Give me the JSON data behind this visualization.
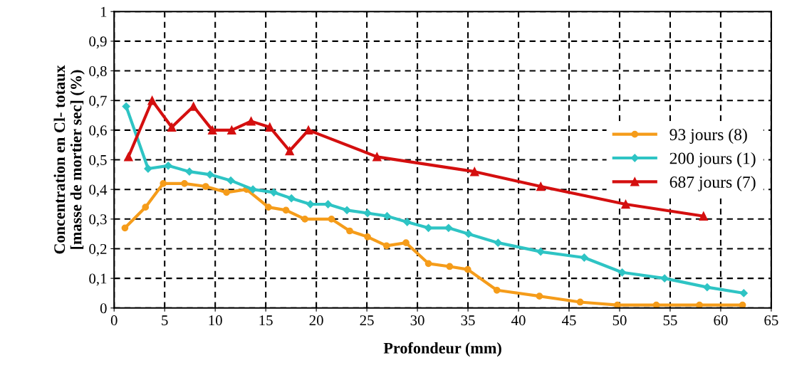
{
  "chart_data": {
    "type": "line",
    "xlabel": "Profondeur (mm)",
    "ylabel": "Concentration en Cl- totaux\n[masse de mortier sec] (%)",
    "xlim": [
      0,
      65
    ],
    "xticks": [
      0,
      5,
      10,
      15,
      20,
      25,
      30,
      35,
      40,
      45,
      50,
      55,
      60,
      65
    ],
    "ylim": [
      0,
      1
    ],
    "yticks": [
      0,
      {
        "value": 0.1,
        "label": "0,1"
      },
      {
        "value": 0.2,
        "label": "0,2"
      },
      {
        "value": 0.3,
        "label": "0,3"
      },
      {
        "value": 0.4,
        "label": "0,4"
      },
      {
        "value": 0.5,
        "label": "0,5"
      },
      {
        "value": 0.6,
        "label": "0,6"
      },
      {
        "value": 0.7,
        "label": "0,7"
      },
      {
        "value": 0.8,
        "label": "0,8"
      },
      {
        "value": 0.9,
        "label": "0,9"
      },
      1
    ],
    "grid": true,
    "legend": "center right",
    "series": [
      {
        "name": "93 jours (8)",
        "color": "#f59c1a",
        "marker": "circle",
        "x": [
          1.07,
          3.1,
          4.86,
          6.96,
          9.06,
          11.12,
          13.1,
          15.26,
          17.0,
          18.87,
          21.5,
          23.3,
          25.07,
          26.95,
          28.87,
          31.09,
          33.19,
          34.98,
          37.86,
          42.07,
          46.1,
          49.78,
          53.63,
          57.9,
          62.16
        ],
        "values": [
          0.27,
          0.34,
          0.42,
          0.42,
          0.41,
          0.39,
          0.4,
          0.34,
          0.33,
          0.3,
          0.3,
          0.26,
          0.24,
          0.21,
          0.22,
          0.15,
          0.14,
          0.13,
          0.06,
          0.04,
          0.02,
          0.01,
          0.01,
          0.01,
          0.01
        ]
      },
      {
        "name": "200 jours (1)",
        "color": "#2ec4c4",
        "marker": "diamond",
        "x": [
          1.19,
          3.36,
          5.35,
          7.45,
          9.48,
          11.54,
          13.73,
          15.79,
          17.54,
          19.41,
          21.16,
          23.03,
          25.07,
          27.0,
          28.99,
          31.09,
          33.08,
          35.06,
          37.98,
          42.19,
          46.5,
          50.25,
          54.45,
          58.66,
          62.28
        ],
        "values": [
          0.68,
          0.47,
          0.48,
          0.46,
          0.45,
          0.43,
          0.4,
          0.39,
          0.37,
          0.35,
          0.35,
          0.33,
          0.32,
          0.31,
          0.29,
          0.27,
          0.27,
          0.25,
          0.22,
          0.19,
          0.17,
          0.12,
          0.1,
          0.07,
          0.05
        ]
      },
      {
        "name": "687 jours (7)",
        "color": "#d40f0f",
        "marker": "triangle",
        "x": [
          1.42,
          3.76,
          5.7,
          7.85,
          9.72,
          11.63,
          13.55,
          15.4,
          17.36,
          19.22,
          26.0,
          35.65,
          42.2,
          50.6,
          58.3
        ],
        "values": [
          0.51,
          0.7,
          0.61,
          0.68,
          0.6,
          0.6,
          0.63,
          0.61,
          0.53,
          0.6,
          0.51,
          0.46,
          0.41,
          0.35,
          0.31
        ]
      }
    ]
  }
}
